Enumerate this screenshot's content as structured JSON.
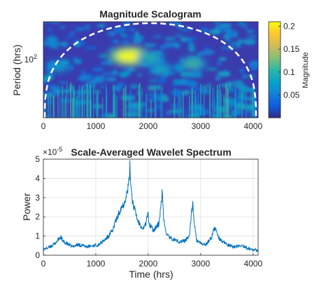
{
  "chart_data": [
    {
      "type": "heatmap",
      "title": "Magnitude Scalogram",
      "xlabel": "",
      "ylabel": "Period (hrs)",
      "xlim": [
        0,
        4096
      ],
      "xticks": [
        0,
        1000,
        2000,
        3000,
        4000
      ],
      "yscale": "log",
      "yticks": [
        {
          "value": 100,
          "label": "10"
        }
      ],
      "yticks_exponent": "2",
      "cone_of_influence": true,
      "colormap": "parula",
      "colorbar": {
        "label": "Magnitude",
        "range": [
          0,
          0.21
        ],
        "ticks": [
          0.05,
          0.1,
          0.15,
          0.2
        ],
        "tick_labels": [
          "0.05",
          "0.1",
          "0.15",
          "0.2"
        ]
      },
      "hotspots": [
        {
          "time": 1650,
          "period": 120,
          "magnitude": 0.21
        },
        {
          "time": 2050,
          "period": 110,
          "magnitude": 0.1
        },
        {
          "time": 2850,
          "period": 80,
          "magnitude": 0.11
        },
        {
          "time": 2250,
          "period": 60,
          "magnitude": 0.09
        },
        {
          "time": 300,
          "period": 70,
          "magnitude": 0.08
        }
      ]
    },
    {
      "type": "line",
      "title": "Scale-Averaged Wavelet Spectrum",
      "y_exponent_label": "×10",
      "y_exponent": "-5",
      "xlabel": "Time (hrs)",
      "ylabel": "Power",
      "xlim": [
        0,
        4096
      ],
      "ylim": [
        0,
        5
      ],
      "xticks": [
        0,
        1000,
        2000,
        3000,
        4000
      ],
      "yticks": [
        0,
        1,
        2,
        3,
        4,
        5
      ],
      "grid": true,
      "line_color": "#0072BD",
      "x": [
        0,
        100,
        200,
        280,
        330,
        380,
        450,
        550,
        650,
        750,
        850,
        950,
        1050,
        1150,
        1250,
        1330,
        1380,
        1420,
        1480,
        1520,
        1560,
        1600,
        1630,
        1650,
        1670,
        1700,
        1730,
        1760,
        1800,
        1850,
        1900,
        1950,
        1990,
        2020,
        2050,
        2100,
        2150,
        2200,
        2250,
        2270,
        2290,
        2320,
        2360,
        2400,
        2500,
        2600,
        2700,
        2780,
        2820,
        2850,
        2880,
        2920,
        3000,
        3100,
        3200,
        3260,
        3300,
        3350,
        3420,
        3500,
        3600,
        3700,
        3800,
        3900,
        4000,
        4096
      ],
      "y": [
        0.3,
        0.4,
        0.55,
        0.8,
        0.95,
        0.7,
        0.6,
        0.45,
        0.55,
        0.5,
        0.45,
        0.5,
        0.55,
        0.75,
        1.0,
        1.35,
        1.8,
        2.0,
        2.5,
        2.6,
        2.9,
        3.3,
        3.7,
        4.6,
        3.7,
        2.8,
        2.5,
        2.2,
        1.8,
        1.6,
        1.4,
        1.6,
        2.2,
        1.6,
        1.5,
        1.3,
        1.5,
        1.6,
        2.7,
        3.4,
        2.0,
        1.4,
        1.1,
        0.9,
        0.8,
        0.7,
        0.75,
        1.0,
        2.0,
        2.7,
        1.6,
        0.8,
        0.6,
        0.55,
        0.9,
        1.4,
        1.3,
        0.9,
        0.7,
        0.55,
        0.45,
        0.45,
        0.5,
        0.35,
        0.3,
        0.25
      ]
    }
  ]
}
